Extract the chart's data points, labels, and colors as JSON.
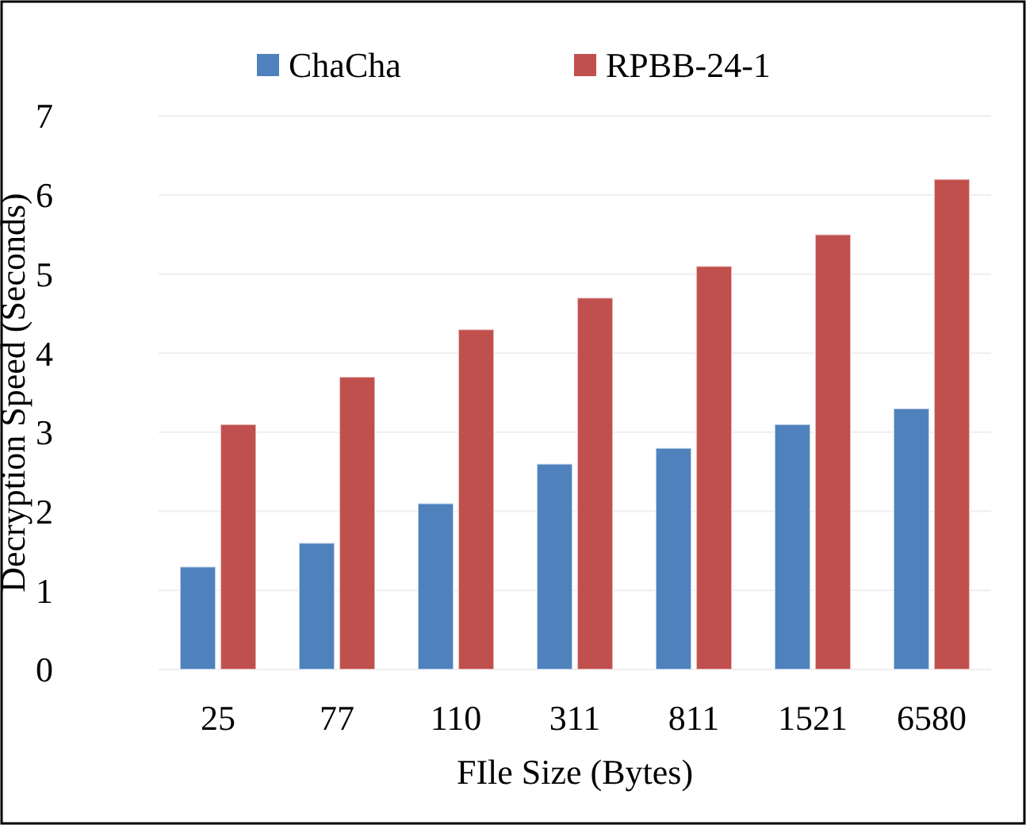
{
  "chart_data": {
    "type": "bar",
    "xlabel": "FIle Size (Bytes)",
    "ylabel": "Decryption Speed (Seconds)",
    "categories": [
      "25",
      "77",
      "110",
      "311",
      "811",
      "1521",
      "6580"
    ],
    "series": [
      {
        "name": "ChaCha",
        "color": "#4f81bd",
        "values": [
          1.3,
          1.6,
          2.1,
          2.6,
          2.8,
          3.1,
          3.3
        ]
      },
      {
        "name": "RPBB-24-1",
        "color": "#c0504d",
        "values": [
          3.1,
          3.7,
          4.3,
          4.7,
          5.1,
          5.5,
          6.2
        ]
      }
    ],
    "ylim": [
      0,
      7
    ],
    "yticks": [
      0,
      1,
      2,
      3,
      4,
      5,
      6,
      7
    ],
    "grid": "y",
    "legend": "top"
  }
}
